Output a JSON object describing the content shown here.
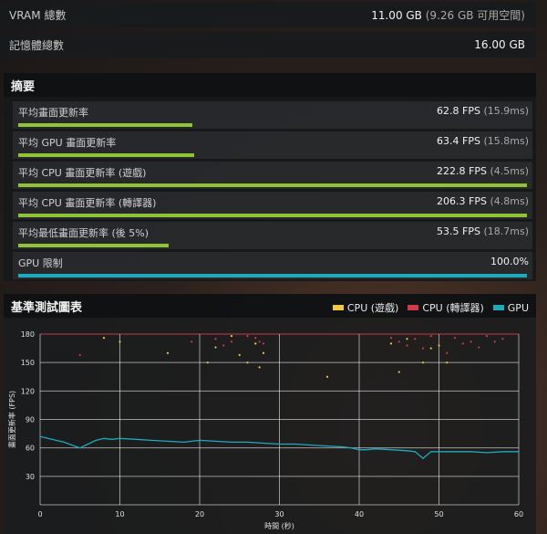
{
  "system": {
    "vram_label": "VRAM 總數",
    "vram_value": "11.00 GB",
    "vram_sub": "(9.26 GB 可用空間)",
    "memory_label": "記憶體總數",
    "memory_value": "16.00 GB"
  },
  "summary": {
    "title": "摘要",
    "items": [
      {
        "label": "平均畫面更新率",
        "value": "62.8 FPS",
        "sub": "(15.9ms)",
        "fill": 0.343,
        "color": "green"
      },
      {
        "label": "平均 GPU 畫面更新率",
        "value": "63.4 FPS",
        "sub": "(15.8ms)",
        "fill": 0.346,
        "color": "green"
      },
      {
        "label": "平均 CPU 畫面更新率 (遊戲)",
        "value": "222.8 FPS",
        "sub": "(4.5ms)",
        "fill": 1.0,
        "color": "green"
      },
      {
        "label": "平均 CPU 畫面更新率 (轉譯器)",
        "value": "206.3 FPS",
        "sub": "(4.8ms)",
        "fill": 1.0,
        "color": "green"
      },
      {
        "label": "平均最低畫面更新率 (後 5%)",
        "value": "53.5 FPS",
        "sub": "(18.7ms)",
        "fill": 0.295,
        "color": "green"
      },
      {
        "label": "GPU 限制",
        "value": "100.0%",
        "sub": "",
        "fill": 1.0,
        "color": "teal"
      }
    ]
  },
  "chart_data": {
    "type": "line",
    "title": "基準測試圖表",
    "xlabel": "時間 (秒)",
    "ylabel": "畫面更新率 (FPS)",
    "xlim": [
      0,
      60
    ],
    "ylim": [
      0,
      180
    ],
    "xticks": [
      0,
      10,
      20,
      30,
      40,
      50,
      60
    ],
    "yticks": [
      30,
      60,
      90,
      120,
      150,
      180
    ],
    "grid": true,
    "legend_position": "top-right",
    "series": [
      {
        "name": "CPU (遊戲)",
        "color": "#f2c744",
        "style": "scatter",
        "x": [
          8,
          10,
          16,
          21,
          22,
          24,
          25,
          26,
          27,
          27.5,
          28,
          36,
          44,
          45,
          46,
          48,
          49,
          50,
          51
        ],
        "y": [
          176,
          172,
          160,
          150,
          166,
          178,
          158,
          150,
          170,
          145,
          160,
          135,
          170,
          140,
          175,
          150,
          165,
          168,
          150
        ]
      },
      {
        "name": "CPU (轉譯器)",
        "color": "#d23a4a",
        "style": "scatter",
        "x": [
          5,
          19,
          22,
          23,
          24,
          26,
          27,
          27.5,
          28,
          44,
          45,
          46,
          47,
          48,
          49,
          50,
          51,
          52,
          53,
          54,
          55,
          56,
          57,
          58
        ],
        "y": [
          158,
          172,
          175,
          168,
          172,
          178,
          176,
          172,
          170,
          176,
          172,
          168,
          175,
          165,
          178,
          172,
          160,
          176,
          170,
          172,
          166,
          178,
          172,
          175
        ]
      },
      {
        "name": "GPU",
        "color": "#1fa9bd",
        "style": "line",
        "x": [
          0,
          1,
          2,
          3,
          4,
          5,
          6,
          7,
          8,
          9,
          10,
          12,
          14,
          16,
          18,
          20,
          22,
          24,
          26,
          28,
          30,
          32,
          34,
          36,
          38,
          39,
          40,
          41,
          42,
          44,
          46,
          47,
          48,
          49,
          50,
          52,
          54,
          56,
          58,
          60
        ],
        "y": [
          72,
          70,
          68,
          66,
          63,
          60,
          64,
          68,
          70,
          69,
          70,
          69,
          68,
          67,
          66,
          68,
          67,
          66,
          66,
          65,
          64,
          64,
          63,
          62,
          61,
          60,
          58,
          58,
          59,
          58,
          57,
          56,
          49,
          56,
          56,
          56,
          56,
          55,
          56,
          56
        ]
      }
    ]
  }
}
